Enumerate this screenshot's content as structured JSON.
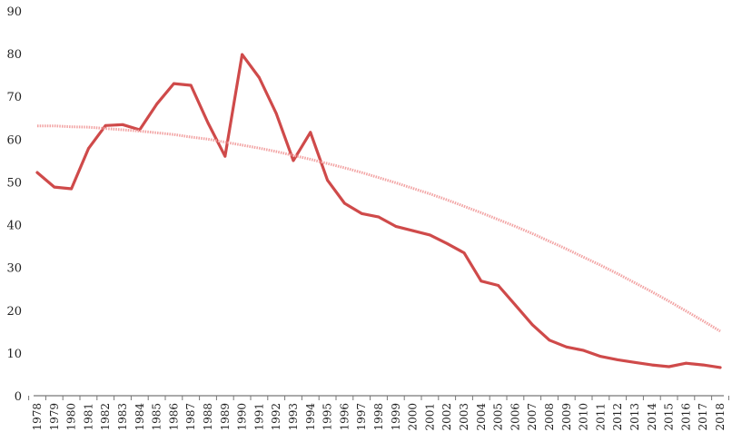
{
  "chart_data": {
    "type": "line",
    "title": "",
    "xlabel": "",
    "ylabel": "",
    "ylim": [
      0,
      90
    ],
    "yticks": [
      0,
      10,
      20,
      30,
      40,
      50,
      60,
      70,
      80,
      90
    ],
    "grid": false,
    "legend": "none",
    "categories": [
      "1978",
      "1979",
      "1980",
      "1981",
      "1982",
      "1983",
      "1984",
      "1985",
      "1986",
      "1987",
      "1988",
      "1989",
      "1990",
      "1991",
      "1992",
      "1993",
      "1994",
      "1995",
      "1996",
      "1997",
      "1998",
      "1999",
      "2000",
      "2001",
      "2002",
      "2003",
      "2004",
      "2005",
      "2006",
      "2007",
      "2008",
      "2009",
      "2010",
      "2011",
      "2012",
      "2013",
      "2014",
      "2015",
      "2016",
      "2017",
      "2018"
    ],
    "series": [
      {
        "kind": "data",
        "color": "#cf4a4a",
        "values": [
          52.2,
          48.8,
          48.4,
          57.8,
          63.2,
          63.4,
          62.2,
          68.2,
          73.0,
          72.6,
          63.8,
          56.0,
          79.8,
          74.4,
          66.0,
          55.0,
          61.6,
          50.4,
          45.0,
          42.6,
          41.8,
          39.6,
          38.6,
          37.6,
          35.6,
          33.4,
          26.8,
          25.8,
          21.2,
          16.6,
          13.0,
          11.4,
          10.6,
          9.2,
          8.4,
          7.8,
          7.2,
          6.8,
          7.6,
          7.2,
          6.6
        ]
      },
      {
        "kind": "trend",
        "color": "#f2a3a3",
        "style": "dotted",
        "values": [
          63.1,
          63.1,
          62.9,
          62.8,
          62.5,
          62.2,
          61.9,
          61.5,
          61.1,
          60.5,
          60.0,
          59.3,
          58.6,
          57.9,
          57.1,
          56.2,
          55.3,
          54.3,
          53.3,
          52.2,
          51.0,
          49.8,
          48.5,
          47.2,
          45.8,
          44.3,
          42.8,
          41.2,
          39.6,
          37.9,
          36.1,
          34.3,
          32.4,
          30.5,
          28.5,
          26.4,
          24.3,
          22.1,
          19.8,
          17.5,
          15.1
        ]
      }
    ]
  }
}
